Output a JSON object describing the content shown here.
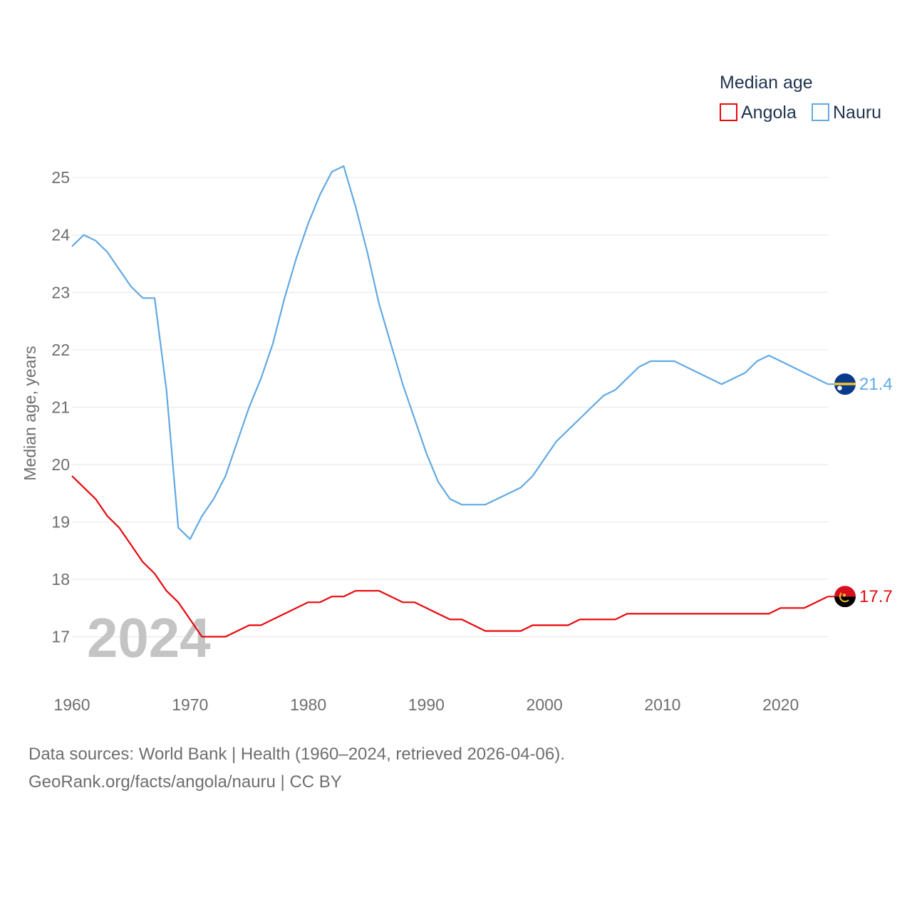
{
  "chart_data": {
    "type": "line",
    "title": "",
    "xlabel": "",
    "ylabel": "Median age, years",
    "xlim": [
      1960,
      2024
    ],
    "ylim": [
      16.3,
      25.3
    ],
    "yticks": [
      "17",
      "18",
      "19",
      "20",
      "21",
      "22",
      "23",
      "24",
      "25"
    ],
    "xticks": [
      "1960",
      "1970",
      "1980",
      "1990",
      "2000",
      "2010",
      "2020"
    ],
    "grid": true,
    "legend_title": "Median age",
    "legend_position": "top-right",
    "year_label": "2024",
    "x": [
      1960,
      1961,
      1962,
      1963,
      1964,
      1965,
      1966,
      1967,
      1968,
      1969,
      1970,
      1971,
      1972,
      1973,
      1974,
      1975,
      1976,
      1977,
      1978,
      1979,
      1980,
      1981,
      1982,
      1983,
      1984,
      1985,
      1986,
      1987,
      1988,
      1989,
      1990,
      1991,
      1992,
      1993,
      1994,
      1995,
      1996,
      1997,
      1998,
      1999,
      2000,
      2001,
      2002,
      2003,
      2004,
      2005,
      2006,
      2007,
      2008,
      2009,
      2010,
      2011,
      2012,
      2013,
      2014,
      2015,
      2016,
      2017,
      2018,
      2019,
      2020,
      2021,
      2022,
      2023,
      2024
    ],
    "series": [
      {
        "name": "Angola",
        "color": "#e8080d",
        "end_label": "17.7",
        "values": [
          19.8,
          19.6,
          19.4,
          19.1,
          18.9,
          18.6,
          18.3,
          18.1,
          17.8,
          17.6,
          17.3,
          17.0,
          17.0,
          17.0,
          17.1,
          17.2,
          17.2,
          17.3,
          17.4,
          17.5,
          17.6,
          17.6,
          17.7,
          17.7,
          17.8,
          17.8,
          17.8,
          17.7,
          17.6,
          17.6,
          17.5,
          17.4,
          17.3,
          17.3,
          17.2,
          17.1,
          17.1,
          17.1,
          17.1,
          17.2,
          17.2,
          17.2,
          17.2,
          17.3,
          17.3,
          17.3,
          17.3,
          17.4,
          17.4,
          17.4,
          17.4,
          17.4,
          17.4,
          17.4,
          17.4,
          17.4,
          17.4,
          17.4,
          17.4,
          17.4,
          17.5,
          17.5,
          17.5,
          17.6,
          17.7
        ]
      },
      {
        "name": "Nauru",
        "color": "#62a9e3",
        "end_label": "21.4",
        "values": [
          23.8,
          24.0,
          23.9,
          23.7,
          23.4,
          23.1,
          22.9,
          22.9,
          21.3,
          18.9,
          18.7,
          19.1,
          19.4,
          19.8,
          20.4,
          21.0,
          21.5,
          22.1,
          22.9,
          23.6,
          24.2,
          24.7,
          25.1,
          25.2,
          24.5,
          23.7,
          22.8,
          22.1,
          21.4,
          20.8,
          20.2,
          19.7,
          19.4,
          19.3,
          19.3,
          19.3,
          19.4,
          19.5,
          19.6,
          19.8,
          20.1,
          20.4,
          20.6,
          20.8,
          21.0,
          21.2,
          21.3,
          21.5,
          21.7,
          21.8,
          21.8,
          21.8,
          21.7,
          21.6,
          21.5,
          21.4,
          21.5,
          21.6,
          21.8,
          21.9,
          21.8,
          21.7,
          21.6,
          21.5,
          21.4
        ]
      }
    ]
  },
  "source": {
    "line1": "Data sources: World Bank | Health (1960–2024, retrieved 2026-04-06).",
    "line2": "GeoRank.org/facts/angola/nauru | CC BY"
  }
}
